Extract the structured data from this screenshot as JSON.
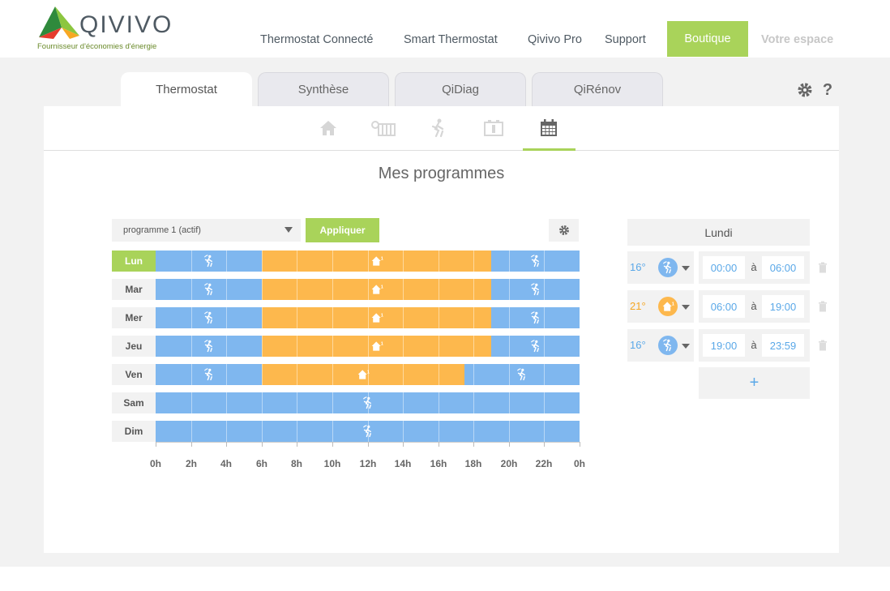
{
  "brand": {
    "name": "QIVIVO",
    "tagline": "Fournisseur d'économies d'énergie"
  },
  "nav": {
    "items": [
      "Thermostat Connecté",
      "Smart Thermostat",
      "Qivivo Pro",
      "Support"
    ],
    "shop": "Boutique",
    "account": "Votre espace"
  },
  "tabs": [
    "Thermostat",
    "Synthèse",
    "QiDiag",
    "QiRénov"
  ],
  "active_tab": "Thermostat",
  "help_label": "?",
  "sub_tabs": [
    "home-icon",
    "radiator-icon",
    "away-icon",
    "battery-icon",
    "calendar-icon"
  ],
  "active_sub_tab": "calendar-icon",
  "page_title": "Mes programmes",
  "program": {
    "selected": "programme 1 (actif)",
    "apply_label": "Appliquer"
  },
  "schedule": {
    "days": [
      "Lun",
      "Mar",
      "Mer",
      "Jeu",
      "Ven",
      "Sam",
      "Dim"
    ],
    "active_day": "Lun",
    "ticks": [
      "0h",
      "2h",
      "4h",
      "6h",
      "8h",
      "10h",
      "12h",
      "14h",
      "16h",
      "18h",
      "20h",
      "22h",
      "0h"
    ],
    "rows": [
      [
        {
          "mode": "eco",
          "start": 0,
          "end": 6
        },
        {
          "mode": "comfort",
          "start": 6,
          "end": 19
        },
        {
          "mode": "eco",
          "start": 19,
          "end": 24
        }
      ],
      [
        {
          "mode": "eco",
          "start": 0,
          "end": 6
        },
        {
          "mode": "comfort",
          "start": 6,
          "end": 19
        },
        {
          "mode": "eco",
          "start": 19,
          "end": 24
        }
      ],
      [
        {
          "mode": "eco",
          "start": 0,
          "end": 6
        },
        {
          "mode": "comfort",
          "start": 6,
          "end": 19
        },
        {
          "mode": "eco",
          "start": 19,
          "end": 24
        }
      ],
      [
        {
          "mode": "eco",
          "start": 0,
          "end": 6
        },
        {
          "mode": "comfort",
          "start": 6,
          "end": 19
        },
        {
          "mode": "eco",
          "start": 19,
          "end": 24
        }
      ],
      [
        {
          "mode": "eco",
          "start": 0,
          "end": 6
        },
        {
          "mode": "comfort",
          "start": 6,
          "end": 17.5
        },
        {
          "mode": "eco",
          "start": 17.5,
          "end": 24
        }
      ],
      [
        {
          "mode": "eco",
          "start": 0,
          "end": 24
        }
      ],
      [
        {
          "mode": "eco",
          "start": 0,
          "end": 24
        }
      ]
    ]
  },
  "day_detail": {
    "title": "Lundi",
    "separator": "à",
    "add_label": "+",
    "periods": [
      {
        "temp": "16°",
        "mode": "eco",
        "start": "00:00",
        "end": "06:00"
      },
      {
        "temp": "21°",
        "mode": "comfort",
        "start": "06:00",
        "end": "19:00"
      },
      {
        "temp": "16°",
        "mode": "eco",
        "start": "19:00",
        "end": "23:59"
      }
    ]
  },
  "colors": {
    "accent_green": "#a9d35a",
    "eco_blue": "#7fb7ef",
    "comfort_orange": "#fdb84d",
    "time_blue": "#5aa8e8",
    "comfort_text": "#f5a623"
  }
}
